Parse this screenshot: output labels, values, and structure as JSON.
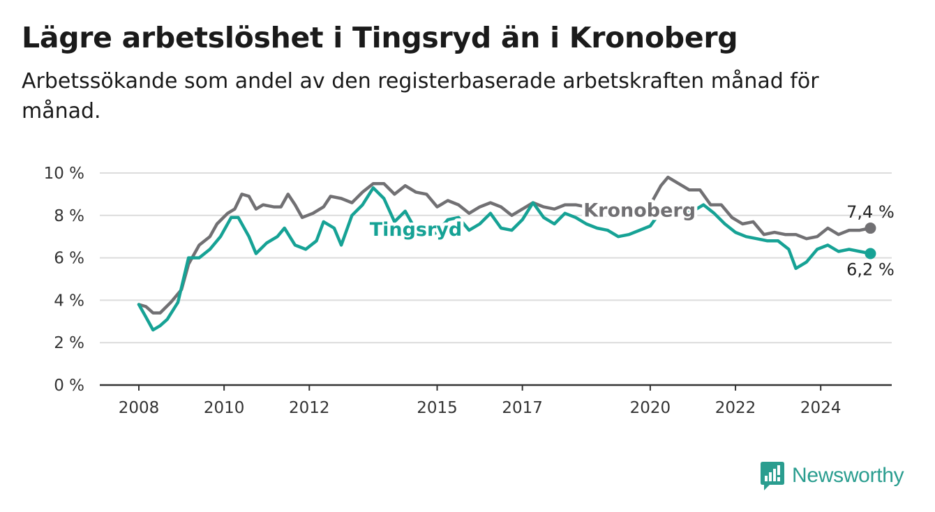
{
  "header": {
    "title": "Lägre arbetslöshet i Tingsryd än i Kronoberg",
    "subtitle": "Arbetssökande som andel av den registerbaserade arbetskraften månad för månad."
  },
  "brand": {
    "name": "Newsworthy",
    "icon": "newsworthy-logo-icon",
    "color": "#2a9d8f"
  },
  "colors": {
    "tingsryd": "#16a295",
    "kronoberg": "#717073",
    "grid": "#dcdcdc",
    "axis": "#333333"
  },
  "chart_data": {
    "type": "line",
    "title": "Lägre arbetslöshet i Tingsryd än i Kronoberg",
    "subtitle": "Arbetssökande som andel av den registerbaserade arbetskraften månad för månad.",
    "xlabel": "",
    "ylabel": "",
    "ylim": [
      0,
      10
    ],
    "xlim": [
      "2007-02",
      "2025-09"
    ],
    "y_ticks": [
      0,
      2,
      4,
      6,
      8,
      10
    ],
    "y_tick_labels": [
      "0 %",
      "2 %",
      "4 %",
      "6 %",
      "8 %",
      "10 %"
    ],
    "x_ticks": [
      "2008-01",
      "2010-01",
      "2012-01",
      "2015-01",
      "2017-01",
      "2020-01",
      "2022-01",
      "2024-01"
    ],
    "x_tick_labels": [
      "2008",
      "2010",
      "2012",
      "2015",
      "2017",
      "2020",
      "2022",
      "2024"
    ],
    "grid": true,
    "legend": "inline labels",
    "series": [
      {
        "name": "Kronoberg",
        "color": "#717073",
        "end_label": "7,4 %",
        "points": [
          [
            "2008-01",
            3.8
          ],
          [
            "2008-03",
            3.7
          ],
          [
            "2008-05",
            3.4
          ],
          [
            "2008-07",
            3.4
          ],
          [
            "2008-10",
            3.9
          ],
          [
            "2009-01",
            4.5
          ],
          [
            "2009-03",
            5.7
          ],
          [
            "2009-06",
            6.6
          ],
          [
            "2009-09",
            7.0
          ],
          [
            "2009-11",
            7.6
          ],
          [
            "2010-02",
            8.1
          ],
          [
            "2010-04",
            8.3
          ],
          [
            "2010-06",
            9.0
          ],
          [
            "2010-08",
            8.9
          ],
          [
            "2010-10",
            8.3
          ],
          [
            "2010-12",
            8.5
          ],
          [
            "2011-03",
            8.4
          ],
          [
            "2011-05",
            8.4
          ],
          [
            "2011-07",
            9.0
          ],
          [
            "2011-09",
            8.5
          ],
          [
            "2011-11",
            7.9
          ],
          [
            "2012-02",
            8.1
          ],
          [
            "2012-05",
            8.4
          ],
          [
            "2012-07",
            8.9
          ],
          [
            "2012-10",
            8.8
          ],
          [
            "2013-01",
            8.6
          ],
          [
            "2013-04",
            9.1
          ],
          [
            "2013-07",
            9.5
          ],
          [
            "2013-10",
            9.5
          ],
          [
            "2014-01",
            9.0
          ],
          [
            "2014-04",
            9.4
          ],
          [
            "2014-07",
            9.1
          ],
          [
            "2014-10",
            9.0
          ],
          [
            "2015-01",
            8.4
          ],
          [
            "2015-04",
            8.7
          ],
          [
            "2015-07",
            8.5
          ],
          [
            "2015-10",
            8.1
          ],
          [
            "2016-01",
            8.4
          ],
          [
            "2016-04",
            8.6
          ],
          [
            "2016-07",
            8.4
          ],
          [
            "2016-10",
            8.0
          ],
          [
            "2017-01",
            8.3
          ],
          [
            "2017-04",
            8.6
          ],
          [
            "2017-07",
            8.4
          ],
          [
            "2017-10",
            8.3
          ],
          [
            "2018-01",
            8.5
          ],
          [
            "2018-04",
            8.5
          ],
          [
            "2018-07",
            8.4
          ],
          [
            "2018-10",
            8.2
          ],
          [
            "2019-01",
            8.0
          ],
          [
            "2019-04",
            8.0
          ],
          [
            "2019-07",
            8.1
          ],
          [
            "2019-10",
            8.2
          ],
          [
            "2020-01",
            8.5
          ],
          [
            "2020-04",
            9.4
          ],
          [
            "2020-06",
            9.8
          ],
          [
            "2020-09",
            9.5
          ],
          [
            "2020-12",
            9.2
          ],
          [
            "2021-03",
            9.2
          ],
          [
            "2021-06",
            8.5
          ],
          [
            "2021-09",
            8.5
          ],
          [
            "2021-12",
            7.9
          ],
          [
            "2022-03",
            7.6
          ],
          [
            "2022-06",
            7.7
          ],
          [
            "2022-09",
            7.1
          ],
          [
            "2022-12",
            7.2
          ],
          [
            "2023-03",
            7.1
          ],
          [
            "2023-06",
            7.1
          ],
          [
            "2023-09",
            6.9
          ],
          [
            "2023-12",
            7.0
          ],
          [
            "2024-03",
            7.4
          ],
          [
            "2024-06",
            7.1
          ],
          [
            "2024-09",
            7.3
          ],
          [
            "2024-12",
            7.3
          ],
          [
            "2025-03",
            7.4
          ]
        ]
      },
      {
        "name": "Tingsryd",
        "color": "#16a295",
        "end_label": "6,2 %",
        "points": [
          [
            "2008-01",
            3.8
          ],
          [
            "2008-03",
            3.2
          ],
          [
            "2008-05",
            2.6
          ],
          [
            "2008-07",
            2.8
          ],
          [
            "2008-09",
            3.1
          ],
          [
            "2008-12",
            3.9
          ],
          [
            "2009-03",
            6.0
          ],
          [
            "2009-06",
            6.0
          ],
          [
            "2009-09",
            6.4
          ],
          [
            "2009-12",
            7.0
          ],
          [
            "2010-03",
            7.9
          ],
          [
            "2010-05",
            7.9
          ],
          [
            "2010-08",
            7.0
          ],
          [
            "2010-10",
            6.2
          ],
          [
            "2011-01",
            6.7
          ],
          [
            "2011-04",
            7.0
          ],
          [
            "2011-06",
            7.4
          ],
          [
            "2011-09",
            6.6
          ],
          [
            "2011-12",
            6.4
          ],
          [
            "2012-03",
            6.8
          ],
          [
            "2012-05",
            7.7
          ],
          [
            "2012-08",
            7.4
          ],
          [
            "2012-10",
            6.6
          ],
          [
            "2013-01",
            8.0
          ],
          [
            "2013-04",
            8.5
          ],
          [
            "2013-07",
            9.3
          ],
          [
            "2013-10",
            8.8
          ],
          [
            "2014-01",
            7.7
          ],
          [
            "2014-04",
            8.2
          ],
          [
            "2014-07",
            7.3
          ],
          [
            "2014-10",
            7.0
          ],
          [
            "2015-01",
            7.2
          ],
          [
            "2015-04",
            7.8
          ],
          [
            "2015-07",
            7.9
          ],
          [
            "2015-10",
            7.3
          ],
          [
            "2016-01",
            7.6
          ],
          [
            "2016-04",
            8.1
          ],
          [
            "2016-07",
            7.4
          ],
          [
            "2016-10",
            7.3
          ],
          [
            "2017-01",
            7.8
          ],
          [
            "2017-04",
            8.6
          ],
          [
            "2017-07",
            7.9
          ],
          [
            "2017-10",
            7.6
          ],
          [
            "2018-01",
            8.1
          ],
          [
            "2018-04",
            7.9
          ],
          [
            "2018-07",
            7.6
          ],
          [
            "2018-10",
            7.4
          ],
          [
            "2019-01",
            7.3
          ],
          [
            "2019-04",
            7.0
          ],
          [
            "2019-07",
            7.1
          ],
          [
            "2019-10",
            7.3
          ],
          [
            "2020-01",
            7.5
          ],
          [
            "2020-04",
            8.2
          ],
          [
            "2020-07",
            8.4
          ],
          [
            "2020-10",
            8.2
          ],
          [
            "2021-01",
            8.2
          ],
          [
            "2021-04",
            8.5
          ],
          [
            "2021-07",
            8.1
          ],
          [
            "2021-10",
            7.6
          ],
          [
            "2022-01",
            7.2
          ],
          [
            "2022-04",
            7.0
          ],
          [
            "2022-07",
            6.9
          ],
          [
            "2022-10",
            6.8
          ],
          [
            "2023-01",
            6.8
          ],
          [
            "2023-04",
            6.4
          ],
          [
            "2023-06",
            5.5
          ],
          [
            "2023-09",
            5.8
          ],
          [
            "2023-12",
            6.4
          ],
          [
            "2024-03",
            6.6
          ],
          [
            "2024-06",
            6.3
          ],
          [
            "2024-09",
            6.4
          ],
          [
            "2024-12",
            6.3
          ],
          [
            "2025-03",
            6.2
          ]
        ]
      }
    ]
  }
}
